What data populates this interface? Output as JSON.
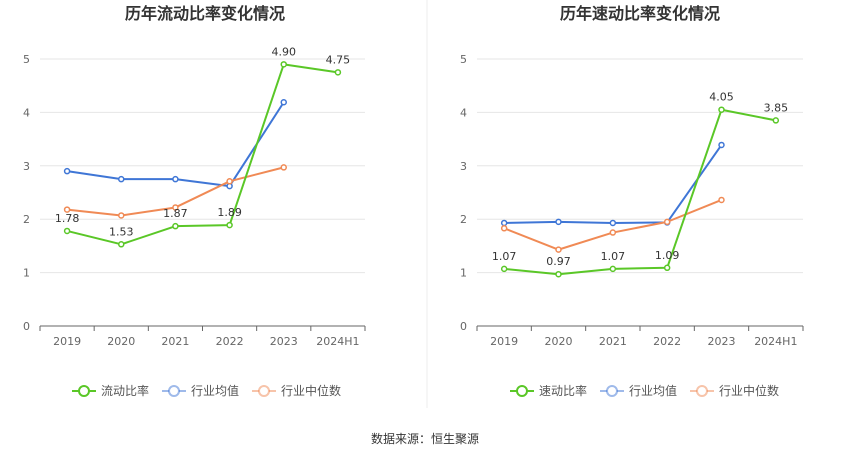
{
  "source_label": "数据来源：恒生聚源",
  "colors": {
    "primary": "#5ac727",
    "average": "#3f76d6",
    "median": "#f08a55",
    "grid": "#e6e6e6",
    "axis": "#666666"
  },
  "chart_data": [
    {
      "type": "line",
      "title": "历年流动比率变化情况",
      "categories": [
        "2019",
        "2020",
        "2021",
        "2022",
        "2023",
        "2024H1"
      ],
      "ylim": [
        0,
        5
      ],
      "yticks": [
        0,
        1,
        2,
        3,
        4,
        5
      ],
      "grid": true,
      "legend_position": "bottom",
      "series": [
        {
          "name": "流动比率",
          "role": "primary",
          "values": [
            1.78,
            1.53,
            1.87,
            1.89,
            4.9,
            4.75
          ],
          "labels": [
            "1.78",
            "1.53",
            "1.87",
            "1.89",
            "4.90",
            "4.75"
          ]
        },
        {
          "name": "行业均值",
          "role": "average",
          "values": [
            2.9,
            2.75,
            2.75,
            2.62,
            4.19,
            null
          ]
        },
        {
          "name": "行业中位数",
          "role": "median",
          "values": [
            2.18,
            2.07,
            2.22,
            2.71,
            2.97,
            null
          ]
        }
      ]
    },
    {
      "type": "line",
      "title": "历年速动比率变化情况",
      "categories": [
        "2019",
        "2020",
        "2021",
        "2022",
        "2023",
        "2024H1"
      ],
      "ylim": [
        0,
        5
      ],
      "yticks": [
        0,
        1,
        2,
        3,
        4,
        5
      ],
      "grid": true,
      "legend_position": "bottom",
      "series": [
        {
          "name": "速动比率",
          "role": "primary",
          "values": [
            1.07,
            0.97,
            1.07,
            1.09,
            4.05,
            3.85
          ],
          "labels": [
            "1.07",
            "0.97",
            "1.07",
            "1.09",
            "4.05",
            "3.85"
          ]
        },
        {
          "name": "行业均值",
          "role": "average",
          "values": [
            1.93,
            1.95,
            1.93,
            1.94,
            3.39,
            null
          ]
        },
        {
          "name": "行业中位数",
          "role": "median",
          "values": [
            1.83,
            1.43,
            1.75,
            1.95,
            2.36,
            null
          ]
        }
      ]
    }
  ]
}
